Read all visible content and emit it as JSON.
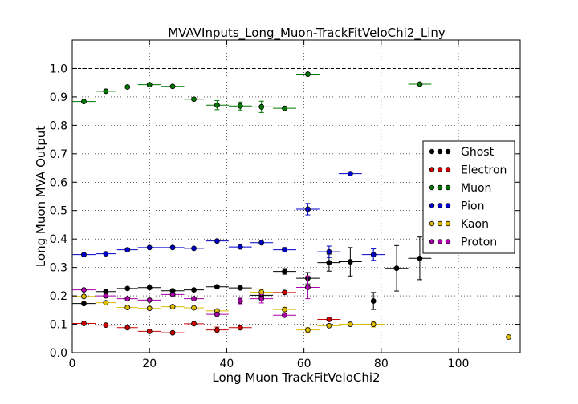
{
  "chart_data": {
    "type": "scatter",
    "title": "MVAVInputs_Long_Muon-TrackFitVeloChi2_Liny",
    "xlabel": "Long Muon TrackFitVeloChi2",
    "ylabel": "Long Muon MVA Output",
    "xlim": [
      0,
      116
    ],
    "ylim": [
      0,
      1.1
    ],
    "x_ticks": [
      "0",
      "20",
      "40",
      "60",
      "80",
      "100"
    ],
    "y_ticks": [
      "0.0",
      "0.1",
      "0.2",
      "0.3",
      "0.4",
      "0.5",
      "0.6",
      "0.7",
      "0.8",
      "0.9",
      "1.0"
    ],
    "reference_line": 1.0,
    "grid": true,
    "legend_position": "right",
    "series": [
      {
        "name": "Ghost",
        "color": "#000000",
        "points": [
          {
            "x": 3,
            "y": 0.173,
            "xerr": 3,
            "yerr": 0.004
          },
          {
            "x": 8.7,
            "y": 0.215,
            "xerr": 2.7,
            "yerr": 0.004
          },
          {
            "x": 14.3,
            "y": 0.226,
            "xerr": 2.7,
            "yerr": 0.004
          },
          {
            "x": 20,
            "y": 0.229,
            "xerr": 3,
            "yerr": 0.004
          },
          {
            "x": 26,
            "y": 0.218,
            "xerr": 3,
            "yerr": 0.004
          },
          {
            "x": 31.5,
            "y": 0.221,
            "xerr": 2.6,
            "yerr": 0.005
          },
          {
            "x": 37.5,
            "y": 0.232,
            "xerr": 3,
            "yerr": 0.005
          },
          {
            "x": 43.5,
            "y": 0.228,
            "xerr": 3,
            "yerr": 0.005
          },
          {
            "x": 49,
            "y": 0.202,
            "xerr": 3,
            "yerr": 0.01
          },
          {
            "x": 55,
            "y": 0.286,
            "xerr": 3,
            "yerr": 0.01
          },
          {
            "x": 61,
            "y": 0.262,
            "xerr": 3,
            "yerr": 0.02
          },
          {
            "x": 66.5,
            "y": 0.317,
            "xerr": 3,
            "yerr": 0.03
          },
          {
            "x": 72,
            "y": 0.32,
            "xerr": 3,
            "yerr": 0.05
          },
          {
            "x": 78,
            "y": 0.182,
            "xerr": 3,
            "yerr": 0.03
          },
          {
            "x": 84,
            "y": 0.297,
            "xerr": 3,
            "yerr": 0.08
          },
          {
            "x": 90,
            "y": 0.332,
            "xerr": 3,
            "yerr": 0.075
          }
        ]
      },
      {
        "name": "Electron",
        "color": "#cc0000",
        "points": [
          {
            "x": 3,
            "y": 0.103,
            "xerr": 3,
            "yerr": 0.004
          },
          {
            "x": 8.7,
            "y": 0.097,
            "xerr": 2.7,
            "yerr": 0.004
          },
          {
            "x": 14.3,
            "y": 0.088,
            "xerr": 2.7,
            "yerr": 0.004
          },
          {
            "x": 20,
            "y": 0.075,
            "xerr": 3,
            "yerr": 0.005
          },
          {
            "x": 26,
            "y": 0.07,
            "xerr": 3,
            "yerr": 0.005
          },
          {
            "x": 31.5,
            "y": 0.102,
            "xerr": 2.6,
            "yerr": 0.006
          },
          {
            "x": 37.5,
            "y": 0.08,
            "xerr": 3,
            "yerr": 0.01
          },
          {
            "x": 43.5,
            "y": 0.088,
            "xerr": 3,
            "yerr": 0.006
          },
          {
            "x": 55,
            "y": 0.212,
            "xerr": 3,
            "yerr": 0.006
          },
          {
            "x": 66.5,
            "y": 0.117,
            "xerr": 3,
            "yerr": 0.006
          }
        ]
      },
      {
        "name": "Muon",
        "color": "#007700",
        "points": [
          {
            "x": 3,
            "y": 0.884,
            "xerr": 3,
            "yerr": 0.004
          },
          {
            "x": 8.7,
            "y": 0.92,
            "xerr": 2.7,
            "yerr": 0.004
          },
          {
            "x": 14.3,
            "y": 0.935,
            "xerr": 2.7,
            "yerr": 0.004
          },
          {
            "x": 20,
            "y": 0.943,
            "xerr": 3,
            "yerr": 0.004
          },
          {
            "x": 26,
            "y": 0.937,
            "xerr": 3,
            "yerr": 0.004
          },
          {
            "x": 31.5,
            "y": 0.892,
            "xerr": 2.6,
            "yerr": 0.005
          },
          {
            "x": 37.5,
            "y": 0.871,
            "xerr": 3,
            "yerr": 0.016
          },
          {
            "x": 43.5,
            "y": 0.868,
            "xerr": 3,
            "yerr": 0.014
          },
          {
            "x": 49,
            "y": 0.865,
            "xerr": 3,
            "yerr": 0.02
          },
          {
            "x": 55,
            "y": 0.86,
            "xerr": 3,
            "yerr": 0.005
          },
          {
            "x": 61,
            "y": 0.98,
            "xerr": 3,
            "yerr": 0.005
          },
          {
            "x": 90,
            "y": 0.945,
            "xerr": 3,
            "yerr": 0.004
          }
        ]
      },
      {
        "name": "Pion",
        "color": "#0000cc",
        "points": [
          {
            "x": 3,
            "y": 0.345,
            "xerr": 3,
            "yerr": 0.004
          },
          {
            "x": 8.7,
            "y": 0.348,
            "xerr": 2.7,
            "yerr": 0.004
          },
          {
            "x": 14.3,
            "y": 0.362,
            "xerr": 2.7,
            "yerr": 0.004
          },
          {
            "x": 20,
            "y": 0.37,
            "xerr": 3,
            "yerr": 0.004
          },
          {
            "x": 26,
            "y": 0.37,
            "xerr": 3,
            "yerr": 0.004
          },
          {
            "x": 31.5,
            "y": 0.367,
            "xerr": 2.6,
            "yerr": 0.004
          },
          {
            "x": 37.5,
            "y": 0.393,
            "xerr": 3,
            "yerr": 0.004
          },
          {
            "x": 43.5,
            "y": 0.372,
            "xerr": 3,
            "yerr": 0.004
          },
          {
            "x": 49,
            "y": 0.387,
            "xerr": 3,
            "yerr": 0.004
          },
          {
            "x": 55,
            "y": 0.362,
            "xerr": 3,
            "yerr": 0.008
          },
          {
            "x": 61,
            "y": 0.505,
            "xerr": 3,
            "yerr": 0.02
          },
          {
            "x": 66.5,
            "y": 0.355,
            "xerr": 3,
            "yerr": 0.02
          },
          {
            "x": 72,
            "y": 0.63,
            "xerr": 3,
            "yerr": 0.006
          },
          {
            "x": 78,
            "y": 0.345,
            "xerr": 3,
            "yerr": 0.02
          }
        ]
      },
      {
        "name": "Kaon",
        "color": "#ddbb00",
        "points": [
          {
            "x": 3,
            "y": 0.198,
            "xerr": 3,
            "yerr": 0.004
          },
          {
            "x": 8.7,
            "y": 0.176,
            "xerr": 2.7,
            "yerr": 0.004
          },
          {
            "x": 14.3,
            "y": 0.159,
            "xerr": 2.7,
            "yerr": 0.004
          },
          {
            "x": 20,
            "y": 0.156,
            "xerr": 3,
            "yerr": 0.004
          },
          {
            "x": 26,
            "y": 0.162,
            "xerr": 3,
            "yerr": 0.004
          },
          {
            "x": 31.5,
            "y": 0.158,
            "xerr": 2.6,
            "yerr": 0.005
          },
          {
            "x": 37.5,
            "y": 0.147,
            "xerr": 3,
            "yerr": 0.006
          },
          {
            "x": 49,
            "y": 0.213,
            "xerr": 3,
            "yerr": 0.008
          },
          {
            "x": 55,
            "y": 0.152,
            "xerr": 3,
            "yerr": 0.008
          },
          {
            "x": 61,
            "y": 0.08,
            "xerr": 3,
            "yerr": 0.008
          },
          {
            "x": 66.5,
            "y": 0.095,
            "xerr": 3,
            "yerr": 0.006
          },
          {
            "x": 72,
            "y": 0.1,
            "xerr": 3,
            "yerr": 0.006
          },
          {
            "x": 78,
            "y": 0.1,
            "xerr": 3,
            "yerr": 0.01
          },
          {
            "x": 113,
            "y": 0.055,
            "xerr": 3,
            "yerr": 0.004
          }
        ]
      },
      {
        "name": "Proton",
        "color": "#aa00aa",
        "points": [
          {
            "x": 3,
            "y": 0.221,
            "xerr": 3,
            "yerr": 0.004
          },
          {
            "x": 8.7,
            "y": 0.2,
            "xerr": 2.7,
            "yerr": 0.004
          },
          {
            "x": 14.3,
            "y": 0.19,
            "xerr": 2.7,
            "yerr": 0.004
          },
          {
            "x": 20,
            "y": 0.185,
            "xerr": 3,
            "yerr": 0.004
          },
          {
            "x": 26,
            "y": 0.205,
            "xerr": 3,
            "yerr": 0.005
          },
          {
            "x": 31.5,
            "y": 0.19,
            "xerr": 2.6,
            "yerr": 0.006
          },
          {
            "x": 37.5,
            "y": 0.135,
            "xerr": 3,
            "yerr": 0.006
          },
          {
            "x": 43.5,
            "y": 0.182,
            "xerr": 3,
            "yerr": 0.01
          },
          {
            "x": 49,
            "y": 0.19,
            "xerr": 3,
            "yerr": 0.015
          },
          {
            "x": 55,
            "y": 0.132,
            "xerr": 3,
            "yerr": 0.006
          },
          {
            "x": 61,
            "y": 0.23,
            "xerr": 3,
            "yerr": 0.04
          }
        ]
      }
    ]
  }
}
